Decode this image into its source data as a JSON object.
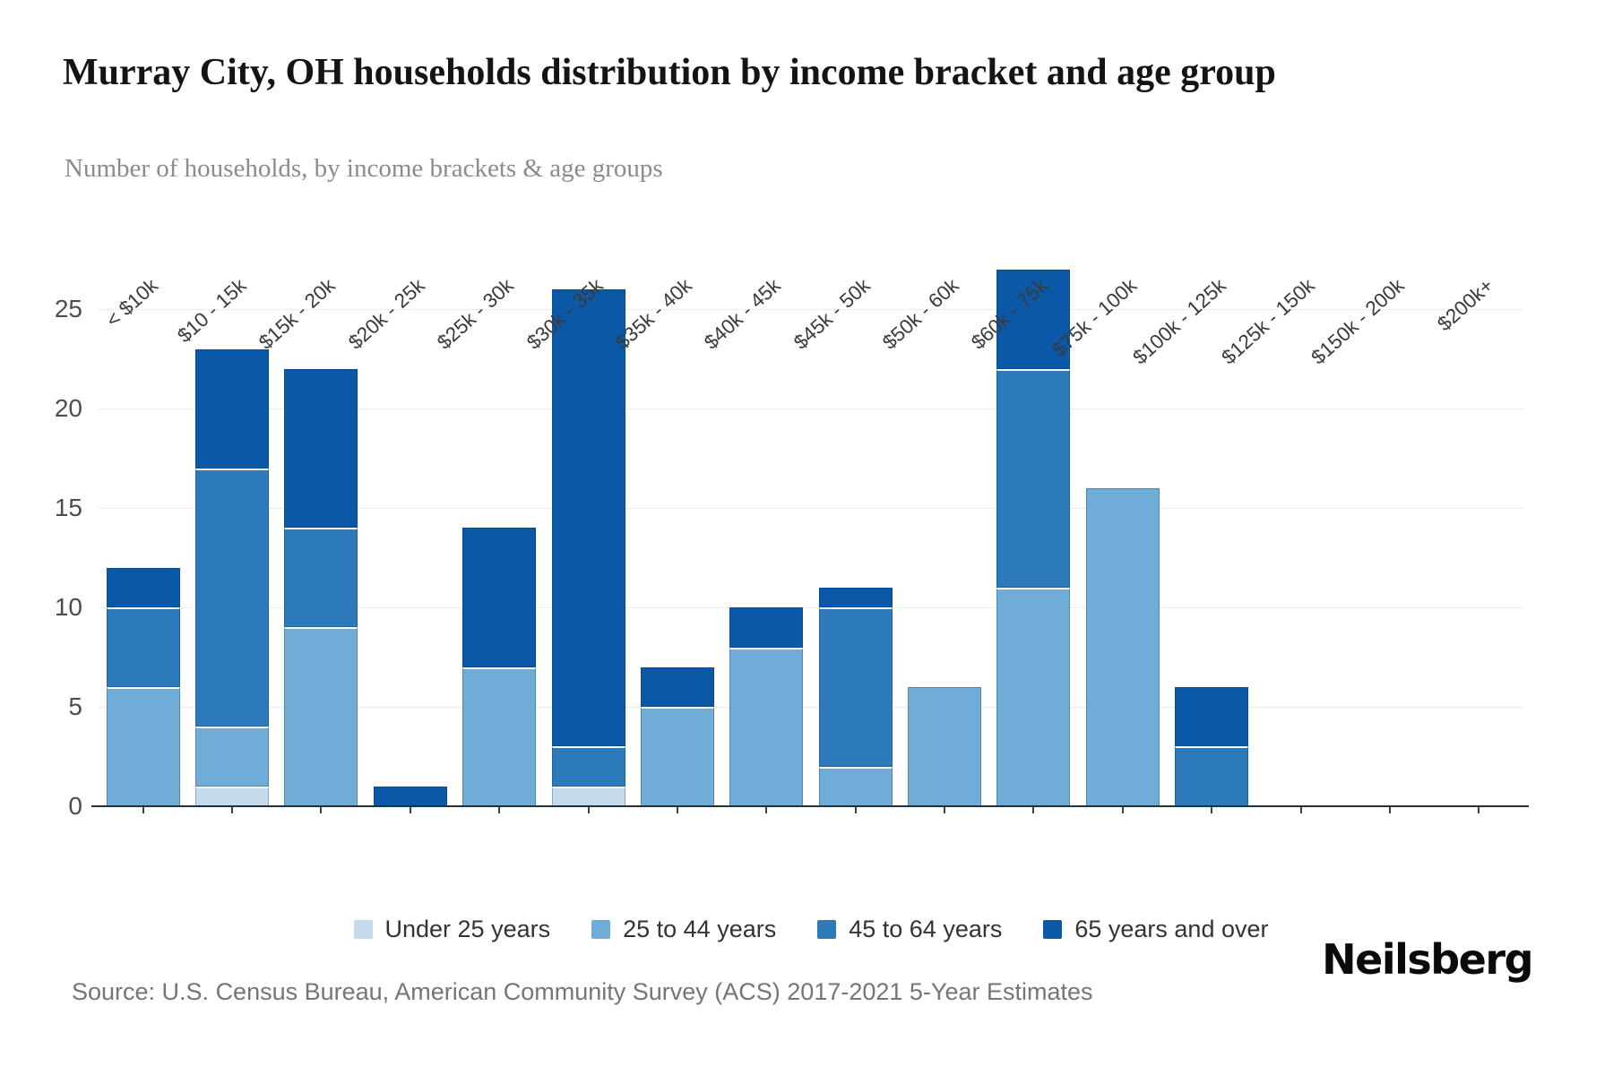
{
  "header": {
    "title": "Murray City, OH households distribution by income bracket and age group",
    "subtitle": "Number of households, by income brackets & age groups"
  },
  "chart_data": {
    "type": "bar",
    "stacked": true,
    "title": "Murray City, OH households distribution by income bracket and age group",
    "xlabel": "",
    "ylabel": "",
    "ylim": [
      0,
      27.5
    ],
    "y_ticks": [
      0,
      5,
      10,
      15,
      20,
      25
    ],
    "grid": true,
    "legend_position": "bottom",
    "categories": [
      "< $10k",
      "$10 - 15k",
      "$15k - 20k",
      "$20k - 25k",
      "$25k - 30k",
      "$30k - 35k",
      "$35k - 40k",
      "$40k - 45k",
      "$45k - 50k",
      "$50k - 60k",
      "$60k - 75k",
      "$75k - 100k",
      "$100k - 125k",
      "$125k - 150k",
      "$150k - 200k",
      "$200k+"
    ],
    "series": [
      {
        "name": "Under 25 years",
        "color": "#c5dbeb",
        "values": [
          0,
          1,
          0,
          0,
          0,
          1,
          0,
          0,
          0,
          0,
          0,
          0,
          0,
          0,
          0,
          0
        ]
      },
      {
        "name": "25 to 44 years",
        "color": "#6fadd6",
        "values": [
          6,
          3,
          9,
          0,
          7,
          0,
          5,
          8,
          2,
          6,
          11,
          16,
          0,
          0,
          0,
          0
        ]
      },
      {
        "name": "45 to 64 years",
        "color": "#2d7abb",
        "values": [
          4,
          13,
          5,
          0,
          0,
          2,
          0,
          0,
          8,
          0,
          11,
          0,
          3,
          0,
          0,
          0
        ]
      },
      {
        "name": "65 years and over",
        "color": "#0b58a8",
        "values": [
          2,
          6,
          8,
          1,
          7,
          23,
          2,
          2,
          1,
          0,
          5,
          0,
          3,
          0,
          0,
          0
        ]
      }
    ],
    "totals": [
      12,
      23,
      22,
      1,
      14,
      26,
      7,
      10,
      11,
      6,
      27,
      16,
      6,
      0,
      0,
      0
    ]
  },
  "footer": {
    "source": "Source: U.S. Census Bureau, American Community Survey (ACS) 2017-2021 5-Year Estimates",
    "brand": "Neilsberg"
  }
}
